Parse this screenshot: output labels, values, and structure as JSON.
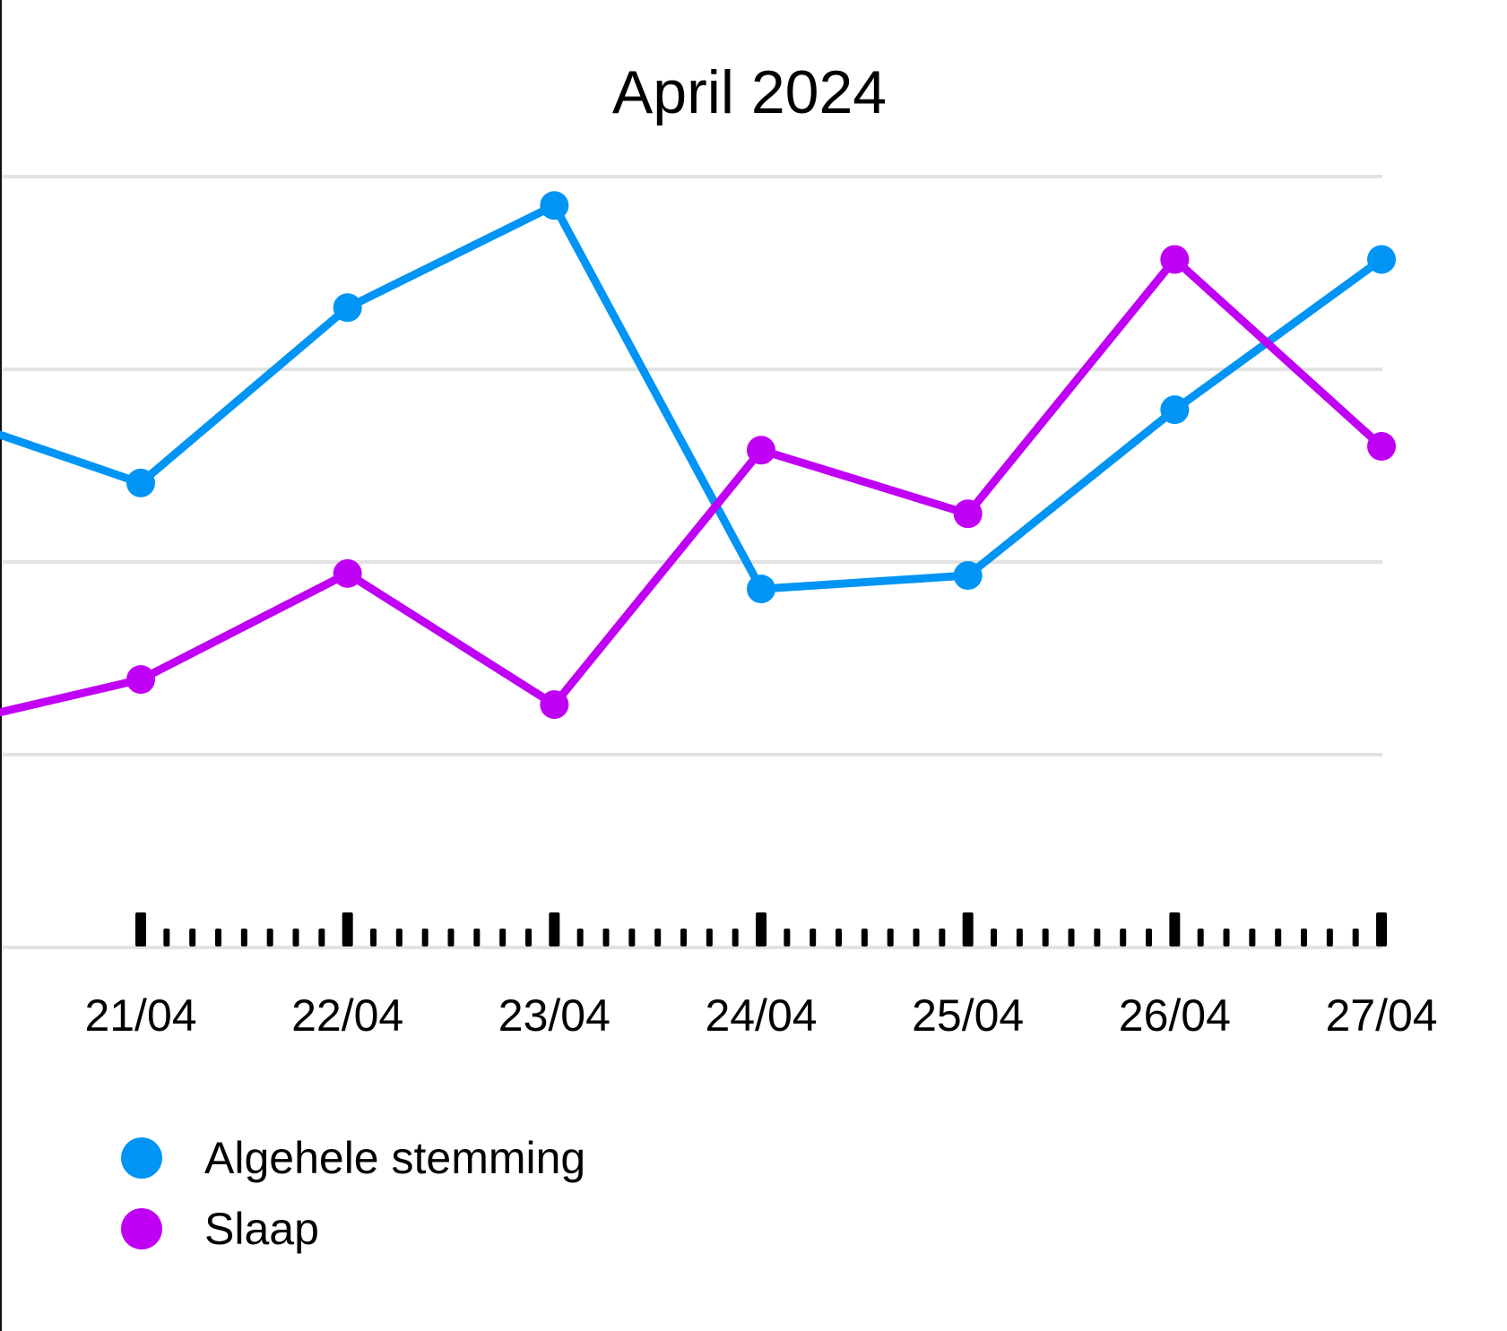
{
  "chart_data": {
    "type": "line",
    "title": "April 2024",
    "categories": [
      "21/04",
      "22/04",
      "23/04",
      "24/04",
      "25/04",
      "26/04",
      "27/04"
    ],
    "ylim": [
      0,
      4
    ],
    "grid": true,
    "legend_position": "bottom-left",
    "series": [
      {
        "name": "Algehele stemming",
        "color": "#0094f5",
        "leading_value": 2.66,
        "values": [
          2.41,
          3.32,
          3.85,
          1.86,
          1.93,
          2.79,
          3.57
        ]
      },
      {
        "name": "Slaap",
        "color": "#c000f5",
        "leading_value": 1.22,
        "values": [
          1.39,
          1.94,
          1.26,
          2.58,
          2.25,
          3.57,
          2.6
        ]
      }
    ]
  }
}
